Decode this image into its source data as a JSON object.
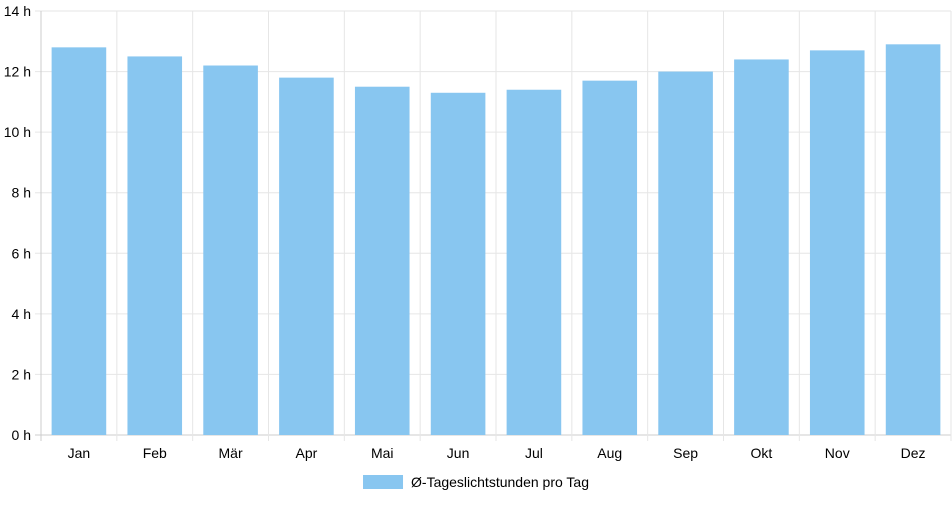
{
  "chart_data": {
    "type": "bar",
    "categories": [
      "Jan",
      "Feb",
      "Mär",
      "Apr",
      "Mai",
      "Jun",
      "Jul",
      "Aug",
      "Sep",
      "Okt",
      "Nov",
      "Dez"
    ],
    "series": [
      {
        "name": "Ø-Tageslichtstunden pro Tag",
        "values": [
          12.8,
          12.5,
          12.2,
          11.8,
          11.5,
          11.3,
          11.4,
          11.7,
          12.0,
          12.4,
          12.7,
          12.9
        ]
      }
    ],
    "ylim": [
      0,
      14
    ],
    "yticks": [
      0,
      2,
      4,
      6,
      8,
      10,
      12,
      14
    ],
    "ytick_suffix": " h",
    "grid": true,
    "legend_position": "bottom",
    "colors": {
      "bar": "#88c6f0",
      "grid": "#e6e6e6",
      "axis": "#cccccc"
    }
  }
}
